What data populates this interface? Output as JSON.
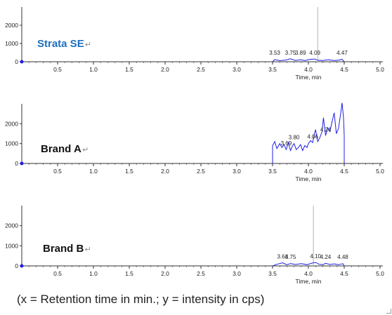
{
  "colors": {
    "trace": "#1f1fe6",
    "cursor": "#b3b3b3",
    "axis": "#333333",
    "brand_blue": "#1f6fbf",
    "brand_black": "#111111"
  },
  "caption": "(x = Retention time in min.; y = intensity in cps)",
  "chart_data": [
    {
      "type": "line",
      "title": "Strata SE",
      "title_color": "#1f6fbf",
      "xlabel": "Time, min",
      "xlim": [
        0,
        5.0
      ],
      "xticks": [
        "0.5",
        "1.0",
        "1.5",
        "2.0",
        "2.5",
        "3.0",
        "3.5",
        "4.0",
        "4.5",
        "5.0"
      ],
      "ylim": [
        0,
        3000
      ],
      "yticks": [
        "0",
        "1000",
        "2000"
      ],
      "cursor_x": 4.13,
      "peak_labels": [
        {
          "x": 3.53,
          "label": "3.53"
        },
        {
          "x": 3.75,
          "label": "3.75"
        },
        {
          "x": 3.89,
          "label": "3.89"
        },
        {
          "x": 4.09,
          "label": "4.09"
        },
        {
          "x": 4.47,
          "label": "4.47"
        }
      ],
      "series": [
        {
          "x": [
            3.5,
            3.53,
            3.6,
            3.68,
            3.75,
            3.82,
            3.89,
            3.95,
            4.02,
            4.09,
            4.13,
            4.2,
            4.28,
            4.36,
            4.42,
            4.47,
            4.5
          ],
          "values": [
            0,
            120,
            60,
            90,
            160,
            70,
            110,
            60,
            130,
            150,
            80,
            70,
            110,
            60,
            90,
            130,
            0
          ]
        }
      ]
    },
    {
      "type": "line",
      "title": "Brand A",
      "title_color": "#111111",
      "xlabel": "Time, min",
      "xlim": [
        0,
        5.0
      ],
      "xticks": [
        "0.5",
        "1.0",
        "1.5",
        "2.0",
        "2.5",
        "3.0",
        "3.5",
        "4.0",
        "4.5",
        "5.0"
      ],
      "ylim": [
        0,
        3000
      ],
      "yticks": [
        "0",
        "1000",
        "2000"
      ],
      "cursor_x": null,
      "peak_labels": [
        {
          "x": 3.69,
          "label": "3.69"
        },
        {
          "x": 3.8,
          "label": "3.80"
        },
        {
          "x": 4.06,
          "label": "4.06"
        },
        {
          "x": 4.24,
          "label": "4.24"
        }
      ],
      "series": [
        {
          "x": [
            3.5,
            3.5,
            3.53,
            3.56,
            3.6,
            3.63,
            3.66,
            3.69,
            3.72,
            3.75,
            3.78,
            3.8,
            3.83,
            3.86,
            3.89,
            3.92,
            3.95,
            3.98,
            4.0,
            4.03,
            4.06,
            4.08,
            4.1,
            4.13,
            4.16,
            4.19,
            4.21,
            4.24,
            4.27,
            4.3,
            4.33,
            4.36,
            4.39,
            4.42,
            4.45,
            4.47,
            4.49,
            4.5,
            4.5
          ],
          "values": [
            0,
            900,
            1100,
            750,
            1000,
            800,
            950,
            700,
            1050,
            650,
            900,
            1000,
            700,
            800,
            950,
            650,
            900,
            800,
            1000,
            1150,
            1050,
            1450,
            1700,
            1100,
            1300,
            1600,
            2300,
            1400,
            1800,
            1600,
            2100,
            2550,
            1500,
            1750,
            2500,
            3050,
            2300,
            1400,
            0
          ]
        }
      ]
    },
    {
      "type": "line",
      "title": "Brand B",
      "title_color": "#111111",
      "xlabel": "Time, min",
      "xlim": [
        0,
        5.0
      ],
      "xticks": [
        "0.5",
        "1.0",
        "1.5",
        "2.0",
        "2.5",
        "3.0",
        "3.5",
        "4.0",
        "4.5",
        "5.0"
      ],
      "ylim": [
        0,
        3000
      ],
      "yticks": [
        "0",
        "1000",
        "2000"
      ],
      "cursor_x": 4.07,
      "peak_labels": [
        {
          "x": 3.64,
          "label": "3.64"
        },
        {
          "x": 3.75,
          "label": "3.75"
        },
        {
          "x": 4.1,
          "label": "4.10"
        },
        {
          "x": 4.24,
          "label": "4.24"
        },
        {
          "x": 4.48,
          "label": "4.48"
        }
      ],
      "series": [
        {
          "x": [
            3.5,
            3.56,
            3.64,
            3.7,
            3.75,
            3.82,
            3.9,
            3.98,
            4.05,
            4.1,
            4.15,
            4.2,
            4.24,
            4.3,
            4.36,
            4.42,
            4.48,
            4.5
          ],
          "values": [
            0,
            80,
            150,
            60,
            120,
            70,
            110,
            60,
            140,
            170,
            80,
            60,
            130,
            70,
            100,
            60,
            110,
            0
          ]
        }
      ]
    }
  ]
}
